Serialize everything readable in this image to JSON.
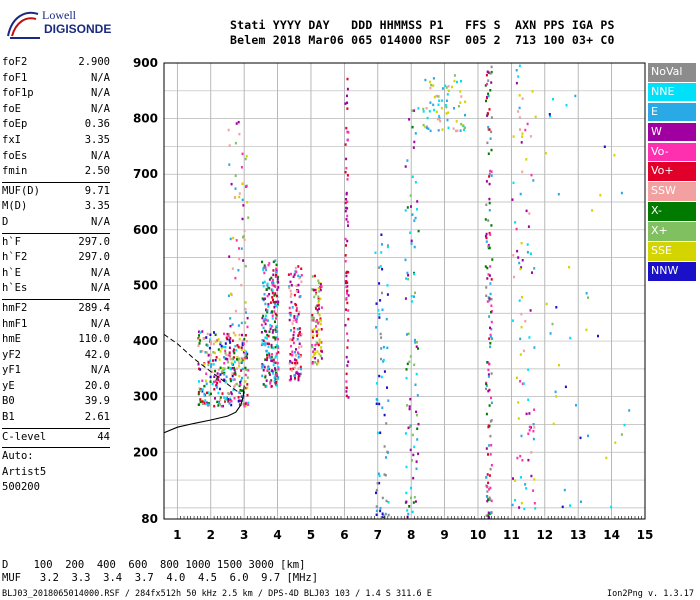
{
  "logo": {
    "line1": "Lowell",
    "line2": "DIGISONDE"
  },
  "header": {
    "line1": "Stati YYYY DAY   DDD HHMMSS P1   FFS S  AXN PPS IGA PS",
    "line2": "Belem 2018 Mar06 065 014000 RSF  005 2  713 100 03+ C0"
  },
  "params": [
    {
      "k": "foF2",
      "v": "2.900"
    },
    {
      "k": "foF1",
      "v": "N/A"
    },
    {
      "k": "foF1p",
      "v": "N/A"
    },
    {
      "k": "foE",
      "v": "N/A"
    },
    {
      "k": "foEp",
      "v": "0.36"
    },
    {
      "k": "fxI",
      "v": "3.35"
    },
    {
      "k": "foEs",
      "v": "N/A"
    },
    {
      "k": "fmin",
      "v": "2.50"
    },
    {
      "k": "MUF(D)",
      "v": "9.71"
    },
    {
      "k": "M(D)",
      "v": "3.35"
    },
    {
      "k": "D",
      "v": "N/A"
    },
    {
      "k": "h`F",
      "v": "297.0"
    },
    {
      "k": "h`F2",
      "v": "297.0"
    },
    {
      "k": "h`E",
      "v": "N/A"
    },
    {
      "k": "h`Es",
      "v": "N/A"
    },
    {
      "k": "hmF2",
      "v": "289.4"
    },
    {
      "k": "hmF1",
      "v": "N/A"
    },
    {
      "k": "hmE",
      "v": "110.0"
    },
    {
      "k": "yF2",
      "v": "42.0"
    },
    {
      "k": "yF1",
      "v": "N/A"
    },
    {
      "k": "yE",
      "v": "20.0"
    },
    {
      "k": "B0",
      "v": "39.9"
    },
    {
      "k": "B1",
      "v": "2.61"
    },
    {
      "k": "C-level",
      "v": "44"
    },
    {
      "k": "Auto:",
      "v": ""
    },
    {
      "k": "Artist5",
      "v": ""
    },
    {
      "k": "500200",
      "v": ""
    }
  ],
  "legend": [
    {
      "label": "NoVal",
      "color": "#8c8c8c"
    },
    {
      "label": "NNE",
      "color": "#00e0f8"
    },
    {
      "label": "E",
      "color": "#29a9e6"
    },
    {
      "label": "W",
      "color": "#a000a0"
    },
    {
      "label": "Vo-",
      "color": "#ff30b0"
    },
    {
      "label": "Vo+",
      "color": "#e0002a"
    },
    {
      "label": "SSW",
      "color": "#f3a0a0"
    },
    {
      "label": "X-",
      "color": "#007a00"
    },
    {
      "label": "X+",
      "color": "#80c060"
    },
    {
      "label": "SSE",
      "color": "#d4d400"
    },
    {
      "label": "NNW",
      "color": "#1a10c8"
    }
  ],
  "footer": {
    "d_line": "D    100  200  400  600  800 1000 1500 3000 [km]",
    "muf_line": "MUF   3.2  3.3  3.4  3.7  4.0  4.5  6.0  9.7 [MHz]",
    "filename": "BLJ03_2018065014000.RSF / 284fx512h 50 kHz 2.5 km / DPS-4D BLJ03 103 / 1.4 S 311.6 E",
    "version": "Ion2Png v. 1.3.17"
  },
  "chart_data": {
    "type": "scatter",
    "xlim": [
      0.6,
      15
    ],
    "ylim": [
      80,
      900
    ],
    "x_ticks": [
      1,
      2,
      3,
      4,
      5,
      6,
      7,
      8,
      9,
      10,
      11,
      12,
      13,
      14,
      15
    ],
    "y_ticks": [
      80,
      200,
      300,
      400,
      500,
      600,
      700,
      800,
      900
    ],
    "grid": true,
    "legend_position": "right",
    "trace": [
      [
        0.6,
        235
      ],
      [
        1.0,
        245
      ],
      [
        1.5,
        252
      ],
      [
        2.0,
        258
      ],
      [
        2.5,
        265
      ],
      [
        2.75,
        272
      ],
      [
        2.9,
        285
      ],
      [
        2.97,
        300
      ],
      [
        3.0,
        320
      ]
    ],
    "trace_dashed": [
      [
        0.6,
        412
      ],
      [
        1.0,
        395
      ],
      [
        1.5,
        368
      ],
      [
        2.0,
        345
      ],
      [
        2.3,
        332
      ],
      [
        2.6,
        318
      ],
      [
        2.9,
        305
      ]
    ],
    "clusters": [
      {
        "fmin": 1.6,
        "fmax": 3.1,
        "hmin": 285,
        "hmax": 420,
        "n": 320,
        "colors": [
          "#e0002a",
          "#ff30b0",
          "#a000a0",
          "#29a9e6",
          "#00e0f8",
          "#80c060",
          "#007a00",
          "#d4d400",
          "#f3a0a0",
          "#1a10c8"
        ]
      },
      {
        "fmin": 2.5,
        "fmax": 3.1,
        "hmin": 420,
        "hmax": 800,
        "n": 60,
        "colors": [
          "#ff30b0",
          "#a000a0",
          "#29a9e6",
          "#80c060",
          "#d4d400",
          "#f3a0a0"
        ]
      },
      {
        "fmin": 3.5,
        "fmax": 4.0,
        "hmin": 320,
        "hmax": 550,
        "n": 220,
        "colors": [
          "#e0002a",
          "#a000a0",
          "#ff30b0",
          "#29a9e6",
          "#00e0f8",
          "#007a00"
        ]
      },
      {
        "fmin": 4.3,
        "fmax": 4.7,
        "hmin": 330,
        "hmax": 540,
        "n": 120,
        "colors": [
          "#e0002a",
          "#a000a0",
          "#ff30b0",
          "#29a9e6",
          "#f3a0a0"
        ]
      },
      {
        "fmin": 5.0,
        "fmax": 5.3,
        "hmin": 360,
        "hmax": 520,
        "n": 90,
        "colors": [
          "#a000a0",
          "#e0002a",
          "#ff30b0",
          "#80c060",
          "#d4d400"
        ]
      },
      {
        "fmin": 6.0,
        "fmax": 6.1,
        "hmin": 300,
        "hmax": 900,
        "n": 70,
        "colors": [
          "#a000a0",
          "#e0002a",
          "#ff30b0"
        ]
      },
      {
        "fmin": 6.9,
        "fmax": 7.3,
        "hmin": 85,
        "hmax": 600,
        "n": 70,
        "colors": [
          "#29a9e6",
          "#00e0f8",
          "#1a10c8",
          "#8c8c8c"
        ]
      },
      {
        "fmin": 7.8,
        "fmax": 8.2,
        "hmin": 85,
        "hmax": 850,
        "n": 90,
        "colors": [
          "#29a9e6",
          "#00e0f8",
          "#80c060",
          "#007a00",
          "#a000a0"
        ]
      },
      {
        "fmin": 8.3,
        "fmax": 9.6,
        "hmin": 780,
        "hmax": 880,
        "n": 70,
        "colors": [
          "#29a9e6",
          "#00e0f8",
          "#80c060",
          "#d4d400",
          "#f3a0a0"
        ]
      },
      {
        "fmin": 10.2,
        "fmax": 10.4,
        "hmin": 85,
        "hmax": 900,
        "n": 140,
        "colors": [
          "#e0002a",
          "#a000a0",
          "#007a00",
          "#29a9e6",
          "#ff30b0",
          "#8c8c8c"
        ]
      },
      {
        "fmin": 11.0,
        "fmax": 11.7,
        "hmin": 100,
        "hmax": 900,
        "n": 100,
        "colors": [
          "#f3a0a0",
          "#d4d400",
          "#29a9e6",
          "#a000a0",
          "#00e0f8",
          "#ff30b0"
        ]
      },
      {
        "fmin": 12.0,
        "fmax": 14.5,
        "hmin": 100,
        "hmax": 880,
        "n": 40,
        "colors": [
          "#29a9e6",
          "#80c060",
          "#d4d400",
          "#00e0f8",
          "#1a10c8"
        ]
      }
    ]
  }
}
